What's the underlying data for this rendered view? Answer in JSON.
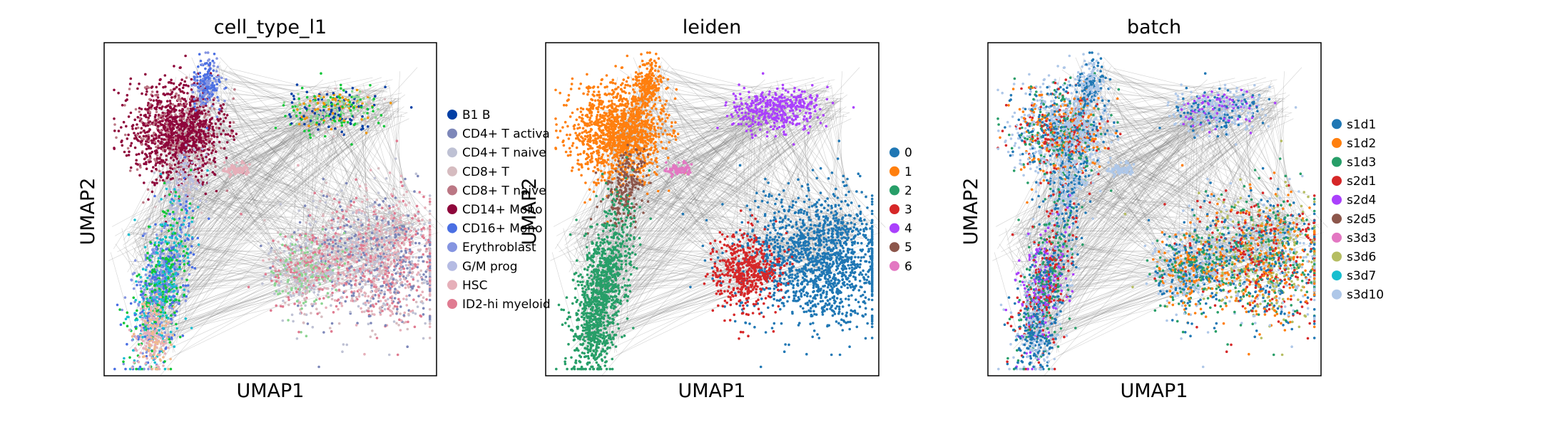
{
  "chart_data": [
    {
      "type": "scatter",
      "title": "cell_type_l1",
      "xlabel": "UMAP1",
      "ylabel": "UMAP2",
      "legend_position": "right",
      "grid": false,
      "series": [
        {
          "name": "B1 B",
          "color": "#023fa5"
        },
        {
          "name": "CD4+ T activa",
          "color": "#7d87b9"
        },
        {
          "name": "CD4+ T naive",
          "color": "#bec1d4"
        },
        {
          "name": "CD8+ T",
          "color": "#d6bcc0"
        },
        {
          "name": "CD8+ T naive",
          "color": "#bb7784"
        },
        {
          "name": "CD14+ Mono",
          "color": "#8e063b"
        },
        {
          "name": "CD16+ Mono",
          "color": "#4a6fe3"
        },
        {
          "name": "Erythroblast",
          "color": "#8595e1"
        },
        {
          "name": "G/M prog",
          "color": "#b5bbe3"
        },
        {
          "name": "HSC",
          "color": "#e6afb9"
        },
        {
          "name": "ID2-hi myeloid",
          "color": "#e07b91"
        }
      ]
    },
    {
      "type": "scatter",
      "title": "leiden",
      "xlabel": "UMAP1",
      "ylabel": "UMAP2",
      "legend_position": "right",
      "grid": false,
      "series": [
        {
          "name": "0",
          "color": "#1f77b4"
        },
        {
          "name": "1",
          "color": "#ff7f0e"
        },
        {
          "name": "2",
          "color": "#279e68"
        },
        {
          "name": "3",
          "color": "#d62728"
        },
        {
          "name": "4",
          "color": "#aa40fc"
        },
        {
          "name": "5",
          "color": "#8c564b"
        },
        {
          "name": "6",
          "color": "#e377c2"
        }
      ]
    },
    {
      "type": "scatter",
      "title": "batch",
      "xlabel": "UMAP1",
      "ylabel": "UMAP2",
      "legend_position": "right",
      "grid": false,
      "series": [
        {
          "name": "s1d1",
          "color": "#1f77b4"
        },
        {
          "name": "s1d2",
          "color": "#ff7f0e"
        },
        {
          "name": "s1d3",
          "color": "#279e68"
        },
        {
          "name": "s2d1",
          "color": "#d62728"
        },
        {
          "name": "s2d4",
          "color": "#aa40fc"
        },
        {
          "name": "s2d5",
          "color": "#8c564b"
        },
        {
          "name": "s3d3",
          "color": "#e377c2"
        },
        {
          "name": "s3d6",
          "color": "#b5bd61"
        },
        {
          "name": "s3d7",
          "color": "#17becf"
        },
        {
          "name": "s3d10",
          "color": "#aec7e8"
        }
      ]
    }
  ]
}
